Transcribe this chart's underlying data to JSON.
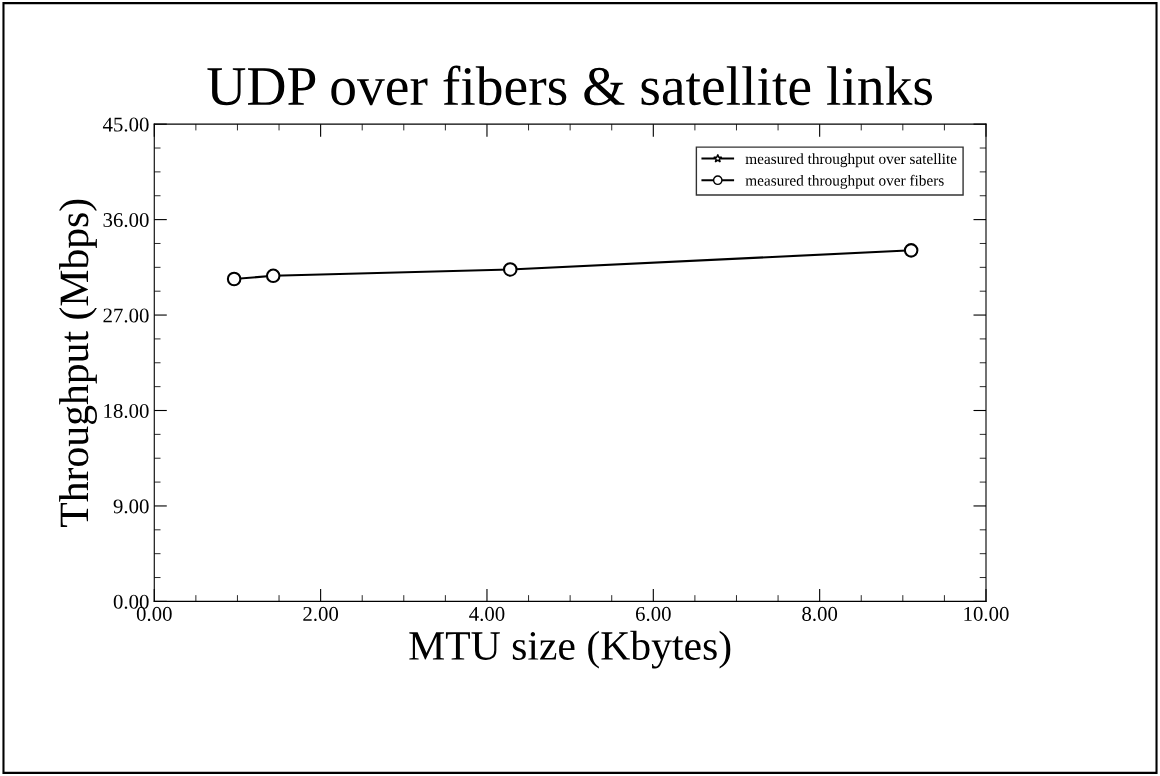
{
  "chart_data": {
    "type": "line",
    "title": "UDP over fibers & satellite links",
    "xlabel": "MTU size (Kbytes)",
    "ylabel": "Throughput (Mbps)",
    "xlim": [
      0,
      10
    ],
    "xticks": [
      {
        "value": 0,
        "label": "0.00"
      },
      {
        "value": 2,
        "label": "2.00"
      },
      {
        "value": 4,
        "label": "4.00"
      },
      {
        "value": 6,
        "label": "6.00"
      },
      {
        "value": 8,
        "label": "8.00"
      },
      {
        "value": 10,
        "label": "10.00"
      }
    ],
    "ylim": [
      0,
      45
    ],
    "yticks": [
      {
        "value": 0,
        "label": "0.00"
      },
      {
        "value": 9,
        "label": "9.00"
      },
      {
        "value": 18,
        "label": "18.00"
      },
      {
        "value": 27,
        "label": "27.00"
      },
      {
        "value": 36,
        "label": "36.00"
      },
      {
        "value": 45,
        "label": "45.00"
      }
    ],
    "x": [
      0.96,
      1.43,
      4.28,
      9.1
    ],
    "series": [
      {
        "name": "measured throughput over satellite",
        "color": "#000000",
        "marker": "star",
        "line_style": "solid",
        "values": [
          null,
          null,
          null,
          null
        ]
      },
      {
        "name": "measured throughput over fibers",
        "color": "#000000",
        "marker": "circle",
        "line_style": "solid",
        "values": [
          30.4,
          30.7,
          31.3,
          33.1
        ]
      }
    ],
    "legend": "top right",
    "grid": false
  }
}
